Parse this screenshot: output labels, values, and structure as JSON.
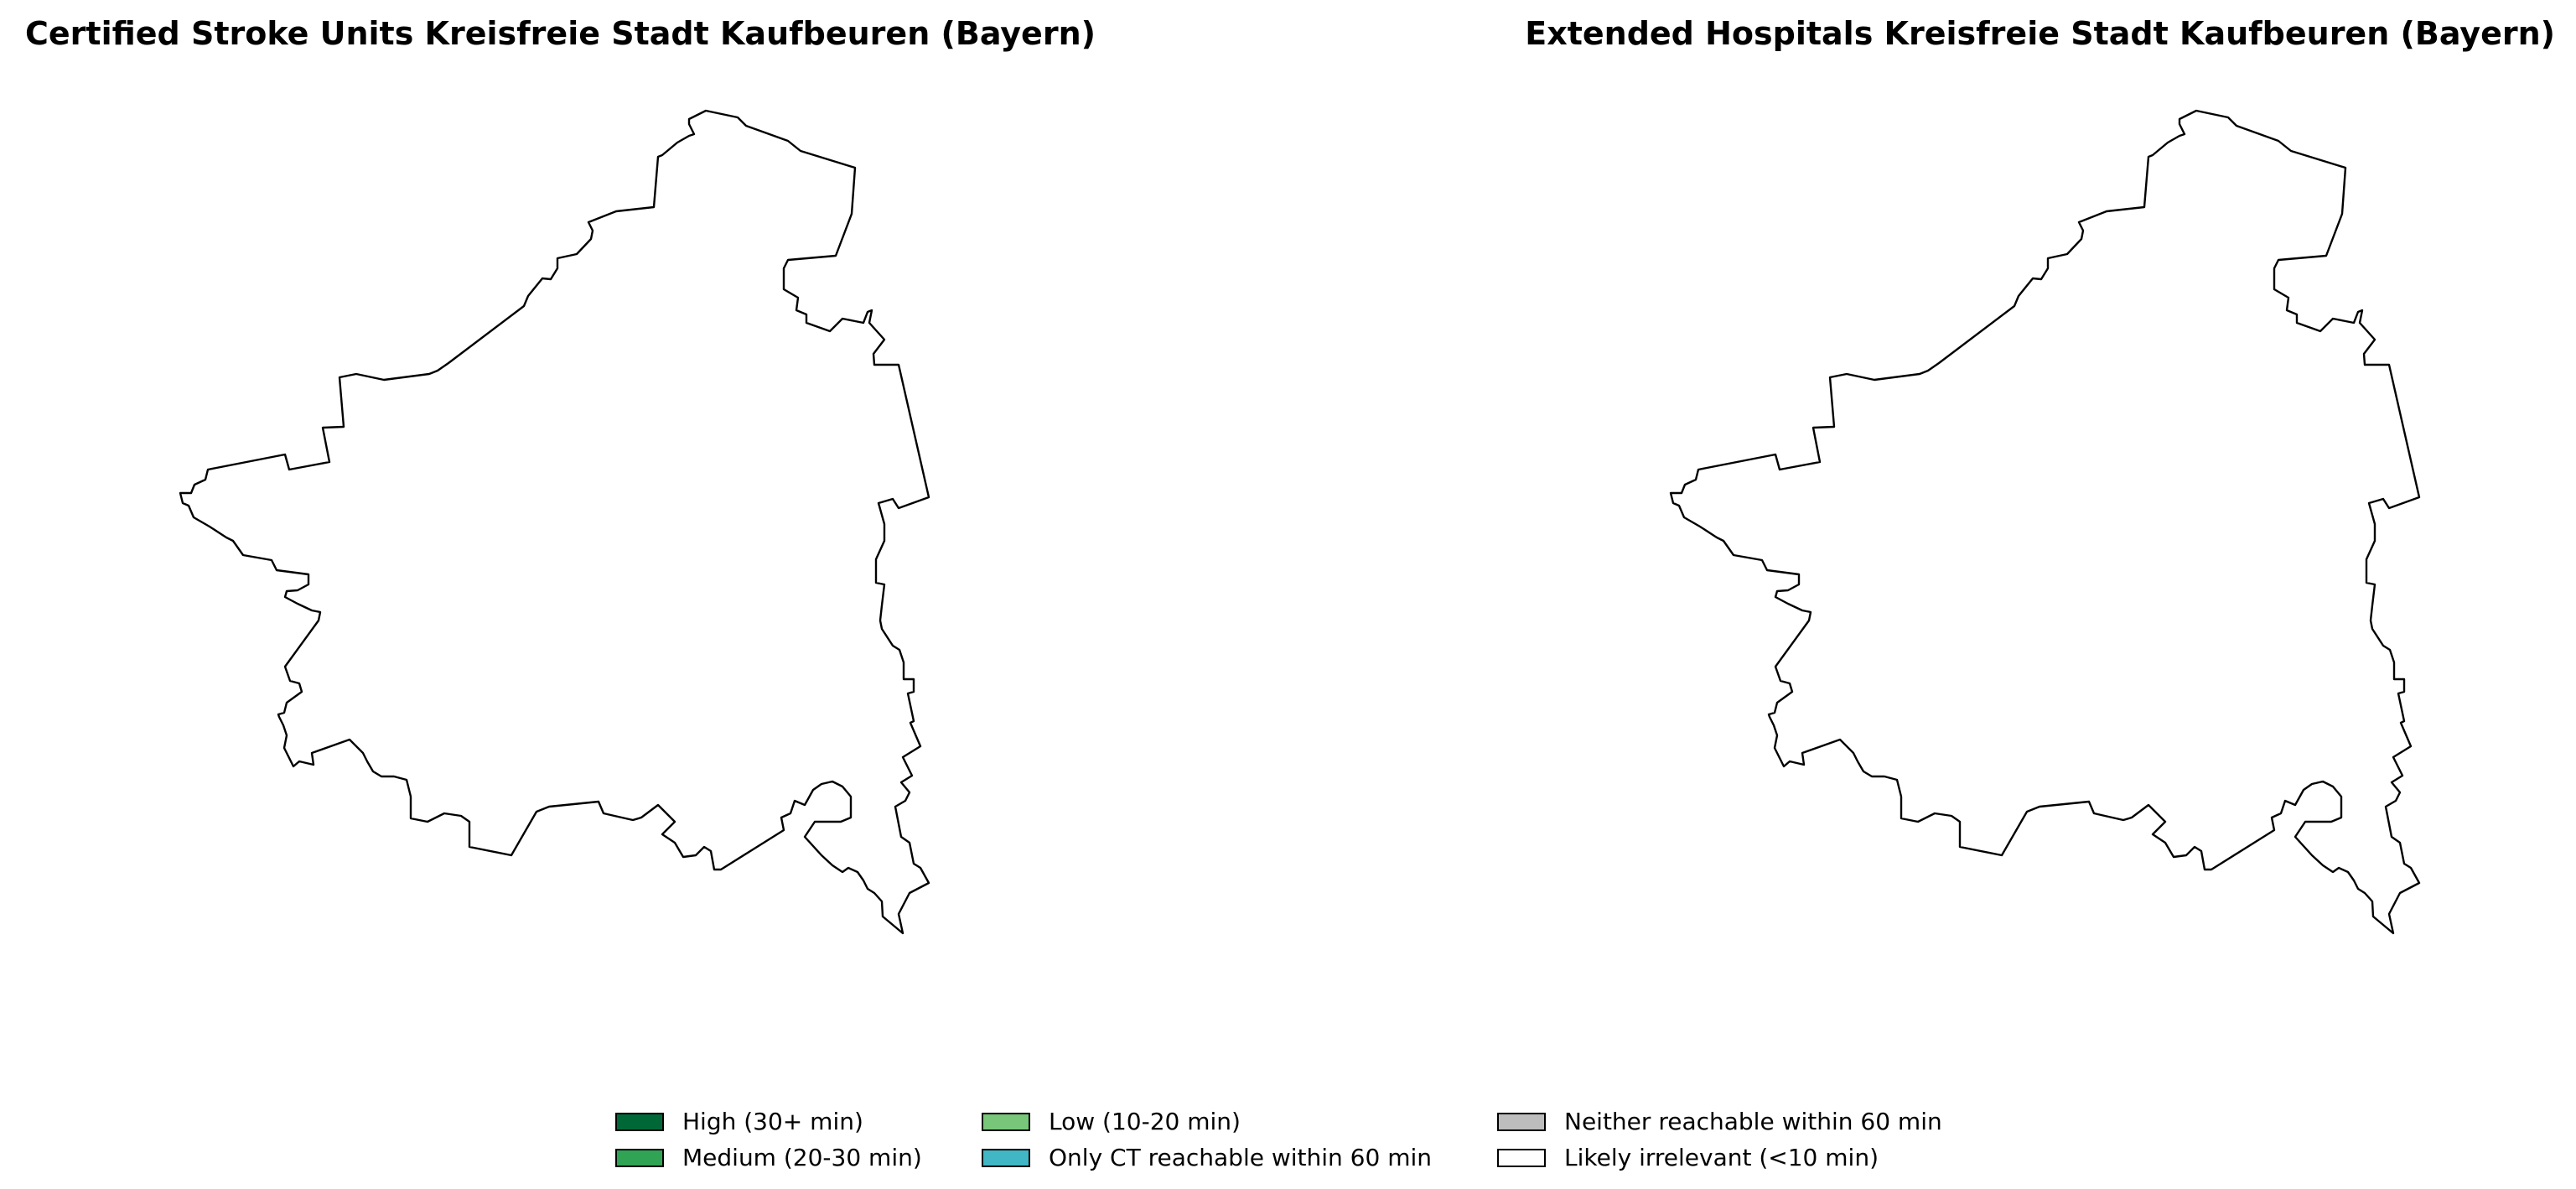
{
  "maps": [
    {
      "title": "Certified Stroke Units Kreisfreie Stadt Kaufbeuren (Bayern)"
    },
    {
      "title": "Extended Hospitals Kreisfreie Stadt Kaufbeuren (Bayern)"
    }
  ],
  "district_fill": "#ffffff",
  "legend": {
    "items": [
      {
        "label": "High (30+ min)",
        "color": "#006837"
      },
      {
        "label": "Medium (20-30 min)",
        "color": "#31a354"
      },
      {
        "label": "Low (10-20 min)",
        "color": "#78c679"
      },
      {
        "label": "Only CT reachable within 60 min",
        "color": "#41b6c4"
      },
      {
        "label": "Neither reachable within 60 min",
        "color": "#bdbdbd"
      },
      {
        "label": "Likely irrelevant (<10 min)",
        "color": "#ffffff"
      }
    ]
  }
}
